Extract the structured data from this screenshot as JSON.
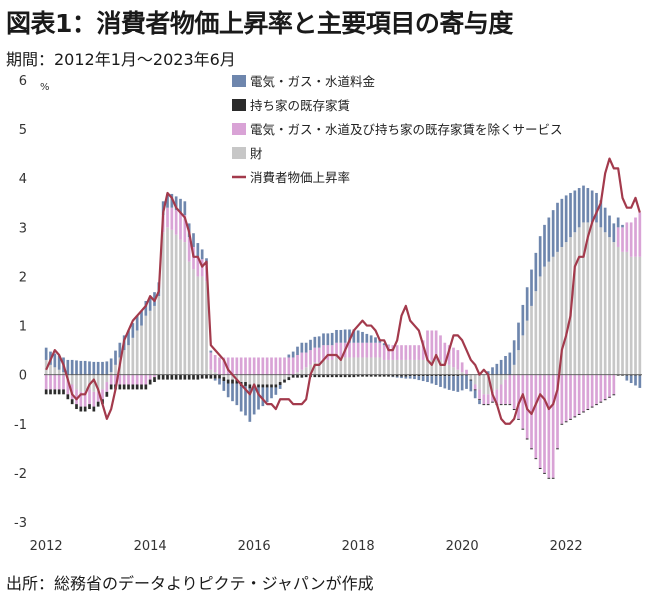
{
  "title": "図表1：消費者物価上昇率と主要項目の寄与度",
  "subtitle": "期間：2012年1月～2023年6月",
  "source": "出所：総務省のデータよりピクテ・ジャパンが作成",
  "chart_data": {
    "type": "bar",
    "stacked": true,
    "unit": "%",
    "ylim": [
      -3,
      6
    ],
    "yticks": [
      "6",
      "5",
      "4",
      "3",
      "2",
      "1",
      "0",
      "-1",
      "-2",
      "-3"
    ],
    "xticks": [
      "2012",
      "2014",
      "2016",
      "2018",
      "2020",
      "2022"
    ],
    "legend_position": "top-center",
    "colors": {
      "energy": "#6e86ad",
      "rent": "#2b2b2b",
      "services": "#d9a3d6",
      "goods": "#c7c7c7",
      "cpi": "#a33a4c"
    },
    "series": [
      {
        "name": "電気・ガス・水道料金",
        "key": "energy",
        "values": [
          0.25,
          0.27,
          0.28,
          0.29,
          0.3,
          0.3,
          0.3,
          0.29,
          0.28,
          0.28,
          0.27,
          0.26,
          0.26,
          0.26,
          0.27,
          0.28,
          0.29,
          0.3,
          0.3,
          0.3,
          0.3,
          0.3,
          0.3,
          0.3,
          0.28,
          0.28,
          0.28,
          0.28,
          0.28,
          0.28,
          0.28,
          0.28,
          0.28,
          0.28,
          0.28,
          0.28,
          0.2,
          0.12,
          0.04,
          -0.04,
          -0.12,
          -0.2,
          -0.28,
          -0.36,
          -0.44,
          -0.52,
          -0.6,
          -0.68,
          -0.55,
          -0.45,
          -0.38,
          -0.3,
          -0.22,
          -0.15,
          -0.08,
          0,
          0.06,
          0.12,
          0.17,
          0.2,
          0.2,
          0.21,
          0.22,
          0.23,
          0.24,
          0.24,
          0.25,
          0.26,
          0.26,
          0.27,
          0.27,
          0.27,
          0.25,
          0.22,
          0.18,
          0.15,
          0.11,
          0.07,
          0.04,
          0.01,
          -0.01,
          -0.02,
          -0.03,
          -0.04,
          -0.05,
          -0.06,
          -0.08,
          -0.1,
          -0.12,
          -0.15,
          -0.18,
          -0.22,
          -0.25,
          -0.28,
          -0.3,
          -0.32,
          -0.3,
          -0.27,
          -0.22,
          -0.16,
          -0.08,
          0,
          0.07,
          0.15,
          0.22,
          0.3,
          0.38,
          0.45,
          0.5,
          0.56,
          0.62,
          0.68,
          0.74,
          0.78,
          0.82,
          0.85,
          0.9,
          0.95,
          1.0,
          0.98,
          0.95,
          0.9,
          0.85,
          0.8,
          0.75,
          0.7,
          0.65,
          0.6,
          0.55,
          0.5,
          0.44,
          0.38,
          0.2,
          0.05,
          -0.1,
          -0.15,
          -0.2,
          -0.25,
          -0.3
        ]
      },
      {
        "name": "持ち家の既存家賃",
        "key": "rent",
        "values": [
          -0.1,
          -0.1,
          -0.1,
          -0.1,
          -0.1,
          -0.1,
          -0.1,
          -0.1,
          -0.1,
          -0.1,
          -0.1,
          -0.1,
          -0.1,
          -0.1,
          -0.1,
          -0.1,
          -0.1,
          -0.1,
          -0.1,
          -0.1,
          -0.1,
          -0.1,
          -0.1,
          -0.1,
          -0.1,
          -0.1,
          -0.1,
          -0.1,
          -0.1,
          -0.1,
          -0.1,
          -0.1,
          -0.1,
          -0.1,
          -0.1,
          -0.1,
          -0.08,
          -0.08,
          -0.08,
          -0.08,
          -0.08,
          -0.08,
          -0.08,
          -0.08,
          -0.08,
          -0.08,
          -0.08,
          -0.08,
          -0.06,
          -0.06,
          -0.06,
          -0.06,
          -0.06,
          -0.06,
          -0.06,
          -0.06,
          -0.06,
          -0.06,
          -0.06,
          -0.06,
          -0.05,
          -0.05,
          -0.05,
          -0.05,
          -0.05,
          -0.05,
          -0.05,
          -0.05,
          -0.05,
          -0.05,
          -0.05,
          -0.05,
          -0.04,
          -0.04,
          -0.04,
          -0.04,
          -0.04,
          -0.04,
          -0.04,
          -0.04,
          -0.04,
          -0.04,
          -0.04,
          -0.04,
          -0.03,
          -0.03,
          -0.03,
          -0.03,
          -0.03,
          -0.03,
          -0.03,
          -0.03,
          -0.03,
          -0.03,
          -0.03,
          -0.03,
          -0.02,
          -0.02,
          -0.02,
          -0.02,
          -0.02,
          -0.02,
          -0.02,
          -0.02,
          -0.02,
          -0.02,
          -0.02,
          -0.02,
          -0.02,
          -0.02,
          -0.02,
          -0.02,
          -0.02,
          -0.02,
          -0.02,
          -0.02,
          -0.02,
          -0.02,
          -0.02,
          -0.02,
          -0.02,
          -0.02,
          -0.02,
          -0.02,
          -0.02,
          -0.02,
          -0.02,
          -0.02,
          -0.02,
          -0.02,
          -0.02,
          -0.02,
          -0.02,
          -0.02,
          -0.02,
          -0.02,
          -0.02,
          -0.02
        ]
      },
      {
        "name": "電気・ガス・水道及び持ち家の既存家賃を除くサービス",
        "key": "services",
        "values": [
          -0.3,
          -0.3,
          -0.3,
          -0.3,
          -0.3,
          -0.3,
          -0.3,
          -0.3,
          -0.3,
          -0.3,
          -0.3,
          -0.3,
          -0.2,
          -0.2,
          -0.2,
          -0.2,
          -0.2,
          -0.2,
          -0.2,
          -0.2,
          -0.2,
          -0.2,
          -0.2,
          -0.2,
          -0.1,
          -0.05,
          0,
          0.35,
          0.4,
          0.45,
          0.5,
          0.55,
          0.55,
          0.5,
          0.45,
          0.4,
          0.35,
          0.35,
          0.35,
          0.35,
          0.35,
          0.35,
          0.35,
          0.35,
          0.35,
          0.35,
          0.35,
          0.35,
          0.35,
          0.35,
          0.35,
          0.35,
          0.35,
          0.35,
          0.35,
          0.35,
          0.35,
          0.35,
          0.35,
          0.35,
          0.3,
          0.3,
          0.3,
          0.3,
          0.3,
          0.3,
          0.3,
          0.3,
          0.3,
          0.3,
          0.3,
          0.3,
          0.3,
          0.3,
          0.3,
          0.3,
          0.3,
          0.3,
          0.3,
          0.3,
          0.3,
          0.3,
          0.3,
          0.3,
          0.3,
          0.3,
          0.3,
          0.4,
          0.6,
          0.6,
          0.6,
          0.5,
          0.4,
          0.4,
          0.4,
          0.4,
          0.2,
          0.1,
          0,
          -0.1,
          -0.2,
          -0.2,
          -0.2,
          -0.2,
          -0.3,
          -0.4,
          -0.5,
          -0.6,
          -0.7,
          -0.9,
          -1.1,
          -1.3,
          -1.5,
          -1.7,
          -1.9,
          -2.0,
          -2.1,
          -2.1,
          -1.5,
          -1.0,
          -0.95,
          -0.9,
          -0.85,
          -0.8,
          -0.75,
          -0.7,
          -0.65,
          -0.6,
          -0.55,
          -0.5,
          -0.45,
          -0.4,
          0.4,
          0.5,
          0.6,
          0.7,
          0.8,
          0.9
        ]
      },
      {
        "name": "財",
        "key": "goods",
        "values": [
          0.3,
          0.2,
          0.15,
          0.1,
          0.05,
          -0.1,
          -0.2,
          -0.3,
          -0.35,
          -0.35,
          -0.3,
          -0.35,
          -0.35,
          -0.3,
          -0.15,
          0.05,
          0.2,
          0.35,
          0.5,
          0.6,
          0.75,
          0.9,
          1.0,
          1.2,
          1.3,
          1.4,
          1.6,
          2.9,
          3.0,
          2.95,
          2.85,
          2.75,
          2.7,
          2.3,
          2.15,
          2.0,
          2.0,
          1.9,
          0.1,
          0.05,
          0.0,
          -0.05,
          -0.1,
          -0.1,
          -0.1,
          -0.15,
          -0.15,
          -0.2,
          -0.2,
          -0.2,
          -0.2,
          -0.2,
          -0.2,
          -0.2,
          -0.15,
          -0.1,
          -0.05,
          0.0,
          0.05,
          0.1,
          0.15,
          0.2,
          0.25,
          0.25,
          0.3,
          0.3,
          0.3,
          0.35,
          0.35,
          0.35,
          0.35,
          0.35,
          0.35,
          0.35,
          0.35,
          0.35,
          0.35,
          0.35,
          0.3,
          0.3,
          0.3,
          0.3,
          0.3,
          0.3,
          0.3,
          0.3,
          0.3,
          0.3,
          0.3,
          0.3,
          0.3,
          0.3,
          0.25,
          0.2,
          0.15,
          0.1,
          0.05,
          0.0,
          -0.1,
          -0.2,
          -0.3,
          -0.4,
          -0.4,
          -0.35,
          -0.3,
          -0.2,
          -0.1,
          0.0,
          0.2,
          0.5,
          0.8,
          1.1,
          1.4,
          1.7,
          2.0,
          2.2,
          2.3,
          2.4,
          2.5,
          2.6,
          2.7,
          2.8,
          2.9,
          3.0,
          3.1,
          3.1,
          3.1,
          3.1,
          3.0,
          2.9,
          2.8,
          2.7,
          2.6,
          2.5,
          2.5,
          2.4,
          2.4,
          2.4
        ]
      }
    ],
    "line": {
      "name": "消費者物価上昇率",
      "key": "cpi",
      "values": [
        0.1,
        0.3,
        0.5,
        0.4,
        0.2,
        -0.1,
        -0.4,
        -0.5,
        -0.4,
        -0.4,
        -0.2,
        -0.1,
        -0.3,
        -0.6,
        -0.9,
        -0.7,
        -0.3,
        0.2,
        0.7,
        0.9,
        1.1,
        1.2,
        1.3,
        1.4,
        1.6,
        1.5,
        1.7,
        3.3,
        3.7,
        3.6,
        3.4,
        3.3,
        3.2,
        2.9,
        2.4,
        2.4,
        2.2,
        2.3,
        0.6,
        0.5,
        0.4,
        0.3,
        0.1,
        0.0,
        -0.1,
        -0.2,
        -0.3,
        -0.4,
        -0.2,
        -0.4,
        -0.5,
        -0.6,
        -0.6,
        -0.7,
        -0.5,
        -0.5,
        -0.5,
        -0.6,
        -0.6,
        -0.6,
        -0.5,
        0.0,
        0.2,
        0.2,
        0.3,
        0.4,
        0.4,
        0.4,
        0.3,
        0.5,
        0.7,
        0.9,
        1.0,
        1.1,
        1.0,
        1.0,
        0.9,
        0.7,
        0.7,
        0.5,
        0.5,
        0.7,
        1.2,
        1.4,
        1.1,
        1.0,
        0.9,
        0.6,
        0.3,
        0.2,
        0.4,
        0.2,
        0.2,
        0.5,
        0.8,
        0.8,
        0.7,
        0.5,
        0.3,
        0.2,
        0.0,
        0.1,
        0.0,
        -0.4,
        -0.6,
        -0.9,
        -1.0,
        -1.0,
        -0.9,
        -0.6,
        -0.4,
        -0.7,
        -0.8,
        -0.6,
        -0.4,
        -0.5,
        -0.7,
        -0.6,
        -0.3,
        0.5,
        0.8,
        1.2,
        2.2,
        2.4,
        2.4,
        2.8,
        3.1,
        3.3,
        3.5,
        4.1,
        4.4,
        4.2,
        4.2,
        3.6,
        3.4,
        3.4,
        3.6,
        3.3
      ]
    }
  },
  "legend": [
    {
      "label": "電気・ガス・水道料金",
      "key": "energy",
      "kind": "box"
    },
    {
      "label": "持ち家の既存家賃",
      "key": "rent",
      "kind": "box"
    },
    {
      "label": "電気・ガス・水道及び持ち家の既存家賃を除くサービス",
      "key": "services",
      "kind": "box"
    },
    {
      "label": "財",
      "key": "goods",
      "kind": "box"
    },
    {
      "label": "消費者物価上昇率",
      "key": "cpi",
      "kind": "line"
    }
  ]
}
